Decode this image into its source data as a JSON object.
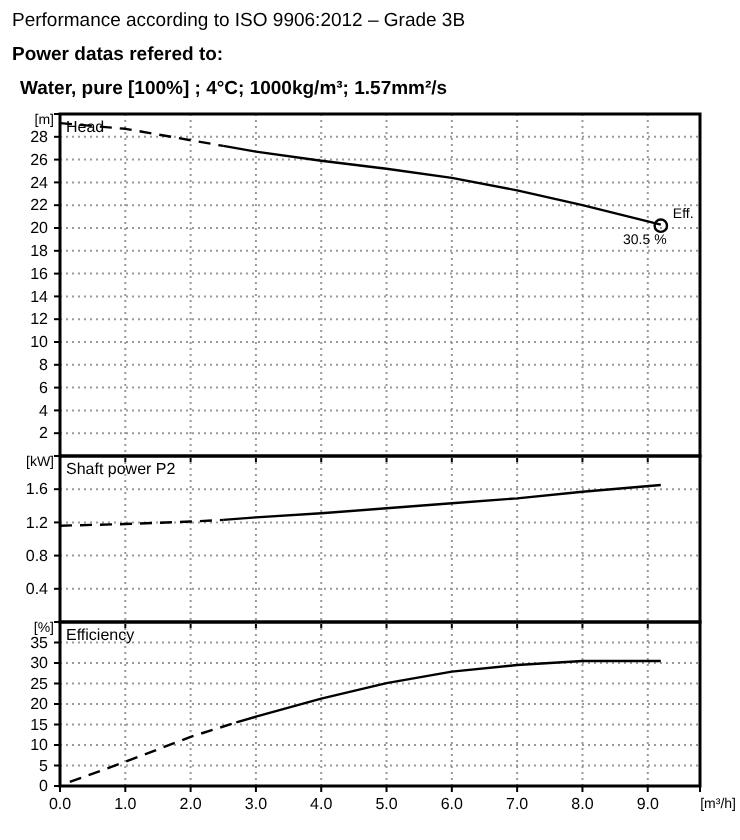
{
  "chart_data": [
    {
      "type": "line",
      "title": "Head",
      "ylabel": "[m]",
      "annotations": [
        "Performance according to ISO 9906:2012 – Grade 3B",
        "Power datas refered to:",
        "Water, pure [100%] ; 4°C; 1000kg/m³; 1.57mm²/s",
        {
          "text": "Eff.",
          "x": 9.2,
          "y": 20.2
        },
        {
          "text": "30.5 %",
          "x": 9.2,
          "y": 20.2
        }
      ],
      "xlim": [
        0,
        9.8
      ],
      "xticks": [
        0,
        1,
        2,
        3,
        4,
        5,
        6,
        7,
        8,
        9
      ],
      "ylim": [
        0,
        30
      ],
      "yticks": [
        2,
        4,
        6,
        8,
        10,
        12,
        14,
        16,
        18,
        20,
        22,
        24,
        26,
        28
      ],
      "grid": true,
      "tick_labels": "y",
      "series": [
        {
          "color": "#000000",
          "line_style": "dashed",
          "marker": "none",
          "x": [
            0,
            1,
            2,
            2.5
          ],
          "values": [
            29.2,
            28.7,
            27.7,
            27.2
          ]
        },
        {
          "color": "#000000",
          "line_style": "solid",
          "marker": "none",
          "x": [
            2.5,
            3,
            4,
            5,
            6,
            7,
            8,
            9.2
          ],
          "values": [
            27.2,
            26.7,
            25.9,
            25.2,
            24.4,
            23.3,
            22.0,
            20.3
          ]
        },
        {
          "type": "scatter",
          "color": "#000000",
          "marker": "circle",
          "x": [
            9.2
          ],
          "values": [
            20.2
          ]
        }
      ]
    },
    {
      "type": "line",
      "title": "Shaft power P2",
      "ylabel": "[kW]",
      "xlim": [
        0,
        9.8
      ],
      "xticks": [
        0,
        1,
        2,
        3,
        4,
        5,
        6,
        7,
        8,
        9
      ],
      "ylim": [
        0,
        2.0
      ],
      "yticks": [
        0.4,
        0.8,
        1.2,
        1.6
      ],
      "grid": true,
      "tick_labels": "y",
      "series": [
        {
          "color": "#000000",
          "line_style": "dashed",
          "marker": "none",
          "x": [
            0,
            1,
            2,
            2.5
          ],
          "values": [
            1.16,
            1.18,
            1.21,
            1.23
          ]
        },
        {
          "color": "#000000",
          "line_style": "solid",
          "marker": "none",
          "x": [
            2.5,
            3,
            4,
            5,
            6,
            7,
            8,
            9.2
          ],
          "values": [
            1.23,
            1.26,
            1.31,
            1.37,
            1.43,
            1.49,
            1.57,
            1.65
          ]
        }
      ]
    },
    {
      "type": "line",
      "title": "Efficiency",
      "ylabel": "[%]",
      "xlabel": "[m³/h]",
      "xlim": [
        0,
        9.8
      ],
      "xticks": [
        {
          "value": 0,
          "label": "0.0"
        },
        {
          "value": 1,
          "label": "1.0"
        },
        {
          "value": 2,
          "label": "2.0"
        },
        {
          "value": 3,
          "label": "3.0"
        },
        {
          "value": 4,
          "label": "4.0"
        },
        {
          "value": 5,
          "label": "5.0"
        },
        {
          "value": 6,
          "label": "6.0"
        },
        {
          "value": 7,
          "label": "7.0"
        },
        {
          "value": 8,
          "label": "8.0"
        },
        {
          "value": 9,
          "label": "9.0"
        }
      ],
      "ylim": [
        0,
        40
      ],
      "yticks": [
        0,
        5,
        10,
        15,
        20,
        25,
        30,
        35
      ],
      "grid": true,
      "series": [
        {
          "color": "#000000",
          "line_style": "dashed",
          "marker": "none",
          "x": [
            0.15,
            1,
            2,
            2.7
          ],
          "values": [
            1,
            5.9,
            12.0,
            15.5
          ]
        },
        {
          "color": "#000000",
          "line_style": "solid",
          "marker": "none",
          "x": [
            2.7,
            3,
            4,
            5,
            6,
            7,
            8,
            9.2
          ],
          "values": [
            15.5,
            16.9,
            21.3,
            25.1,
            27.9,
            29.5,
            30.5,
            30.5
          ]
        }
      ]
    }
  ]
}
